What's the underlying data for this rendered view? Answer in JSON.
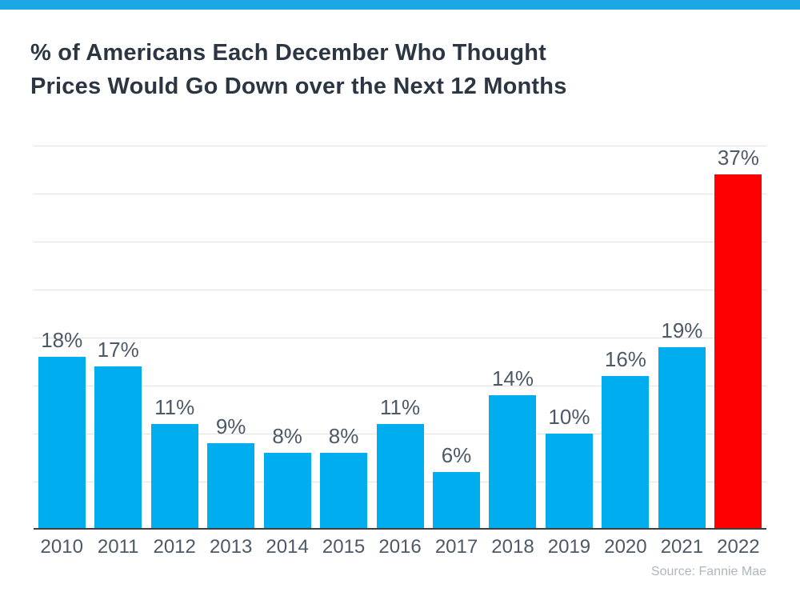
{
  "page": {
    "background_color": "#ffffff",
    "top_strip_color": "#1ca8e4"
  },
  "header": {
    "title_line1": "% of Americans Each December Who Thought",
    "title_line2": "Prices Would Go Down over the Next 12 Months",
    "title_color": "#2b3642"
  },
  "chart_data": {
    "type": "bar",
    "title": "% of Americans Each December Who Thought Prices Would Go Down over the Next 12 Months",
    "categories": [
      "2010",
      "2011",
      "2012",
      "2013",
      "2014",
      "2015",
      "2016",
      "2017",
      "2018",
      "2019",
      "2020",
      "2021",
      "2022"
    ],
    "values": [
      18,
      17,
      11,
      9,
      8,
      8,
      11,
      6,
      14,
      10,
      16,
      19,
      37
    ],
    "bar_labels": [
      "18%",
      "17%",
      "11%",
      "9%",
      "8%",
      "8%",
      "11%",
      "6%",
      "14%",
      "10%",
      "16%",
      "19%",
      "37%"
    ],
    "bar_colors": [
      "#00adef",
      "#00adef",
      "#00adef",
      "#00adef",
      "#00adef",
      "#00adef",
      "#00adef",
      "#00adef",
      "#00adef",
      "#00adef",
      "#00adef",
      "#00adef",
      "#ff0000"
    ],
    "bar_color_default": "#00adef",
    "highlight_category": "2022",
    "highlight_color": "#ff0000",
    "xlabel": "",
    "ylabel": "",
    "ylim": [
      0,
      40
    ],
    "grid_step": 5,
    "grid": "horizontal",
    "gridline_color": "#e2e2e2",
    "axis_line_color": "#3f3f3f",
    "label_color": "#4d5966",
    "legend": "none",
    "source_note": "Source: Fannie Mae"
  },
  "footer": {
    "source": "Source: Fannie Mae"
  }
}
